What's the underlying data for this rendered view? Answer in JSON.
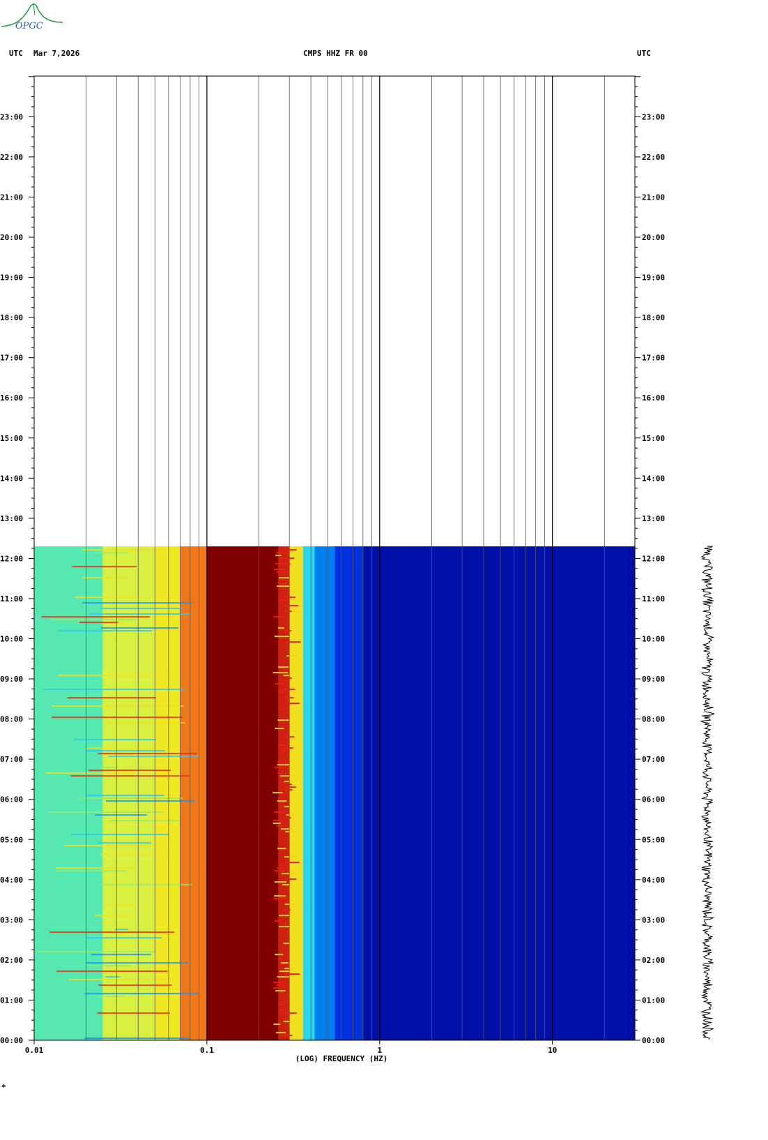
{
  "header": {
    "left_tz": "UTC",
    "date": "Mar 7,2026",
    "station": "CMPS HHZ FR 00",
    "right_tz": "UTC"
  },
  "logo": {
    "text": "OPGC",
    "color": "#1a9a3a"
  },
  "footer_mark": "*",
  "chart_data": {
    "type": "heatmap",
    "title": "CMPS HHZ FR 00",
    "xlabel": "(LOG) FREQUENCY (HZ)",
    "x_scale": "log",
    "xlim": [
      0.01,
      30
    ],
    "x_ticks": [
      0.01,
      0.1,
      1,
      10
    ],
    "x_tick_labels": [
      "0.01",
      "0.1",
      "1",
      "10"
    ],
    "ylabel": "UTC",
    "ylim_hours": [
      0,
      24
    ],
    "y_ticks_hours": [
      0,
      1,
      2,
      3,
      4,
      5,
      6,
      7,
      8,
      9,
      10,
      11,
      12,
      13,
      14,
      15,
      16,
      17,
      18,
      19,
      20,
      21,
      22,
      23
    ],
    "y_tick_labels": [
      "00:00",
      "01:00",
      "02:00",
      "03:00",
      "04:00",
      "05:00",
      "06:00",
      "07:00",
      "08:00",
      "09:00",
      "10:00",
      "11:00",
      "12:00",
      "13:00",
      "14:00",
      "15:00",
      "16:00",
      "17:00",
      "18:00",
      "19:00",
      "20:00",
      "21:00",
      "22:00",
      "23:00"
    ],
    "data_end_hour": 12.3,
    "grid": true,
    "spectral_bands": [
      {
        "f_from": 0.01,
        "f_to": 0.025,
        "color": "#55e8b0"
      },
      {
        "f_from": 0.025,
        "f_to": 0.05,
        "color": "#d8f040"
      },
      {
        "f_from": 0.05,
        "f_to": 0.07,
        "color": "#f0e820"
      },
      {
        "f_from": 0.07,
        "f_to": 0.1,
        "color": "#f07818"
      },
      {
        "f_from": 0.1,
        "f_to": 0.26,
        "color": "#800000"
      },
      {
        "f_from": 0.26,
        "f_to": 0.3,
        "color": "#d02010"
      },
      {
        "f_from": 0.3,
        "f_to": 0.36,
        "color": "#f0e020"
      },
      {
        "f_from": 0.36,
        "f_to": 0.42,
        "color": "#20d8f0"
      },
      {
        "f_from": 0.42,
        "f_to": 0.55,
        "color": "#0080f0"
      },
      {
        "f_from": 0.55,
        "f_to": 0.8,
        "color": "#0030e0"
      },
      {
        "f_from": 0.8,
        "f_to": 30,
        "color": "#0010a8"
      }
    ],
    "colors": {
      "grid": "#000000",
      "trace": "#000000"
    }
  }
}
